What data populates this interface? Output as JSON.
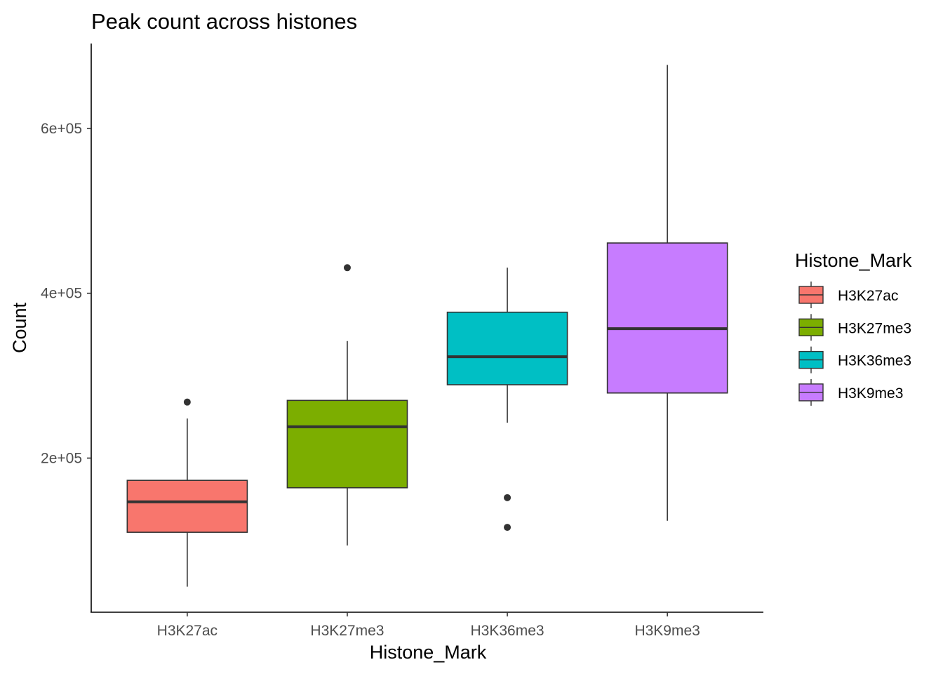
{
  "chart_data": {
    "type": "boxplot",
    "title": "Peak count across histones",
    "xlabel": "Histone_Mark",
    "ylabel": "Count",
    "ylim": [
      13000,
      703000
    ],
    "yticks": [
      200000,
      400000,
      600000
    ],
    "ytick_labels": [
      "2e+05",
      "4e+05",
      "6e+05"
    ],
    "grid": false,
    "legend": {
      "title": "Histone_Mark",
      "placement": "right"
    },
    "categories": [
      "H3K27ac",
      "H3K27me3",
      "H3K36me3",
      "H3K9me3"
    ],
    "boxes": [
      {
        "name": "H3K27ac",
        "color": "#F8766D",
        "whisker_low": 44000,
        "q1": 110000,
        "median": 147000,
        "q3": 173000,
        "whisker_high": 248000,
        "outliers": [
          268000
        ]
      },
      {
        "name": "H3K27me3",
        "color": "#7CAE00",
        "whisker_low": 94000,
        "q1": 164000,
        "median": 238000,
        "q3": 270000,
        "whisker_high": 342000,
        "outliers": [
          431000
        ]
      },
      {
        "name": "H3K36me3",
        "color": "#00BFC4",
        "whisker_low": 243000,
        "q1": 289000,
        "median": 323000,
        "q3": 377000,
        "whisker_high": 431000,
        "outliers": [
          152000,
          116000
        ]
      },
      {
        "name": "H3K9me3",
        "color": "#C77CFF",
        "whisker_low": 124000,
        "q1": 279000,
        "median": 357000,
        "q3": 461000,
        "whisker_high": 677000,
        "outliers": []
      }
    ]
  }
}
